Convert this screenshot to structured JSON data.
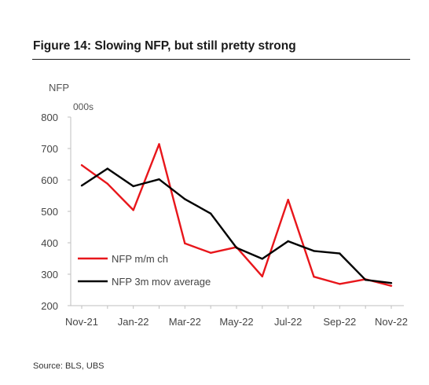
{
  "figure": {
    "title": "Figure 14: Slowing NFP, but still pretty strong",
    "source": "Source: BLS, UBS"
  },
  "chart_data": {
    "type": "line",
    "ylabel": "NFP",
    "yunits": "000s",
    "xlabel": "",
    "ylim": [
      200,
      800
    ],
    "yticks": [
      200,
      300,
      400,
      500,
      600,
      700,
      800
    ],
    "x": [
      "Nov-21",
      "Dec-21",
      "Jan-22",
      "Feb-22",
      "Mar-22",
      "Apr-22",
      "May-22",
      "Jun-22",
      "Jul-22",
      "Aug-22",
      "Sep-22",
      "Oct-22",
      "Nov-22"
    ],
    "xtick_labels": [
      "Nov-21",
      "Jan-22",
      "Mar-22",
      "May-22",
      "Jul-22",
      "Sep-22",
      "Nov-22"
    ],
    "grid": false,
    "legend_position": "bottom-left",
    "series": [
      {
        "name": "NFP m/m ch",
        "color": "#e8161b",
        "values": [
          647,
          588,
          504,
          714,
          398,
          368,
          386,
          293,
          537,
          292,
          269,
          284,
          263
        ]
      },
      {
        "name": "NFP 3m mov average",
        "color": "#000000",
        "values": [
          582,
          636,
          580,
          602,
          539,
          493,
          384,
          349,
          405,
          374,
          366,
          282,
          272
        ]
      }
    ]
  }
}
